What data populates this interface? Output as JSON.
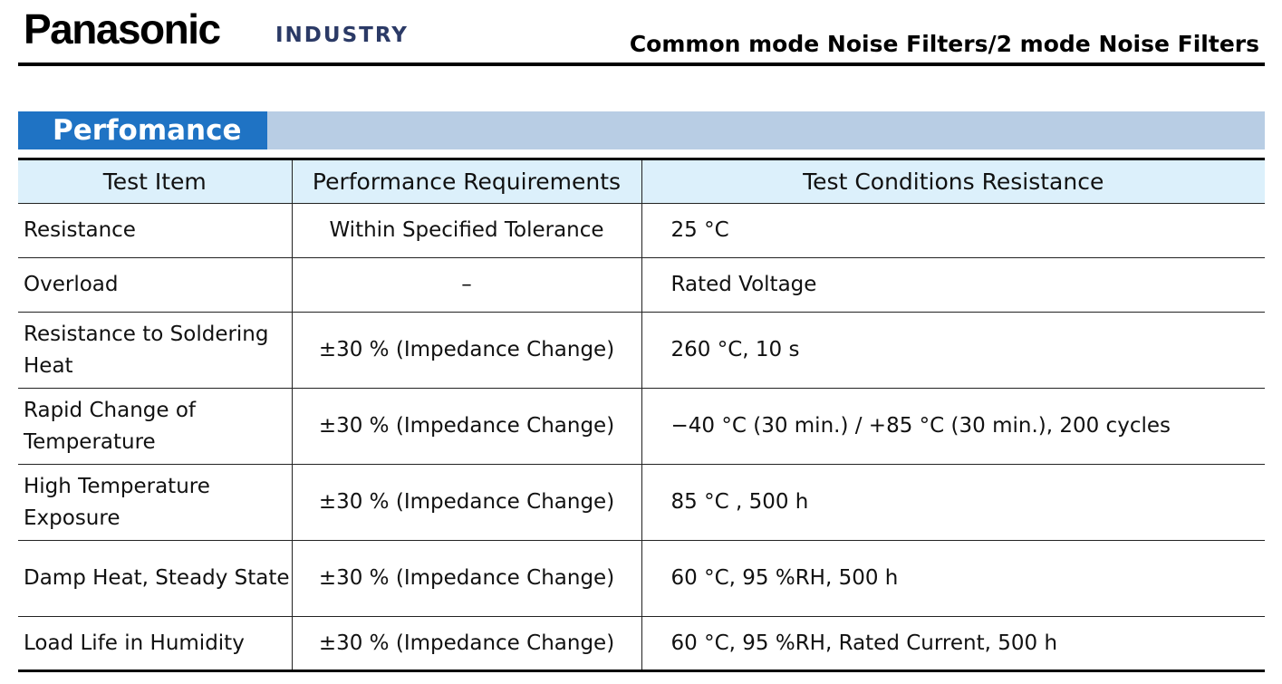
{
  "header": {
    "brand": "Panasonic",
    "brand_sub": "INDUSTRY",
    "title": "Common mode Noise Filters/2 mode Noise Filters"
  },
  "section": {
    "title": "Perfomance"
  },
  "table": {
    "columns": [
      "Test Item",
      "Performance Requirements",
      "Test Conditions Resistance"
    ],
    "rows": [
      {
        "item": "Resistance",
        "requirement": "Within Specified Tolerance",
        "condition": "25 °C"
      },
      {
        "item": "Overload",
        "requirement": "–",
        "condition": "Rated Voltage"
      },
      {
        "item": "Resistance to Soldering Heat",
        "requirement": "±30 % (Impedance Change)",
        "condition": "260 °C, 10 s"
      },
      {
        "item": "Rapid Change of Temperature",
        "requirement": "±30 % (Impedance Change)",
        "condition": "−40 °C (30 min.) / +85 °C (30 min.),  200 cycles"
      },
      {
        "item": "High Temperature Exposure",
        "requirement": "±30 % (Impedance Change)",
        "condition": "85 °C ,  500 h"
      },
      {
        "item": "Damp Heat, Steady State",
        "requirement": "±30 % (Impedance Change)",
        "condition": "60 °C, 95 %RH, 500 h"
      },
      {
        "item": "Load Life in Humidity",
        "requirement": "±30 % (Impedance Change)",
        "condition": "60 °C, 95 %RH, Rated Current,  500 h"
      }
    ]
  },
  "colors": {
    "section_tab": "#1f73c4",
    "section_bar": "#b8cde4",
    "table_header": "#dcf0fb",
    "brand_sub": "#2b3a66"
  }
}
